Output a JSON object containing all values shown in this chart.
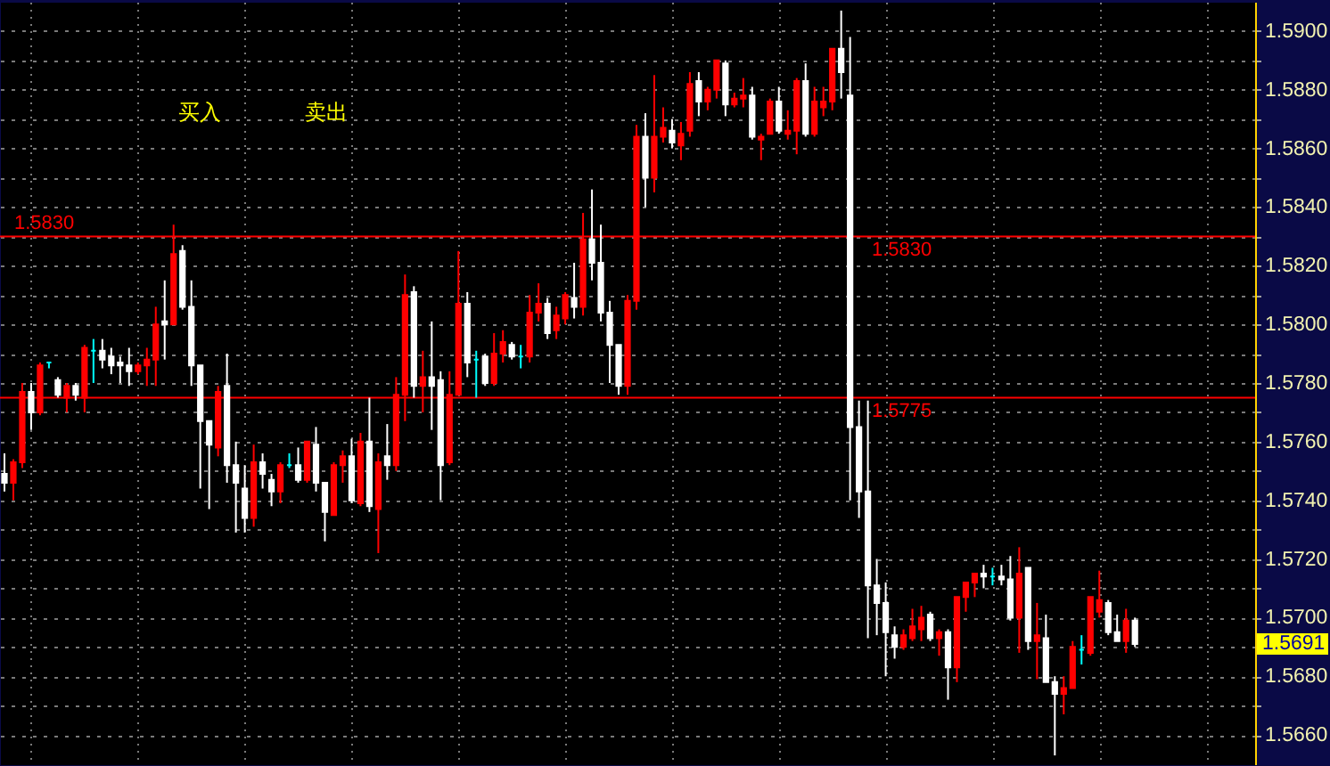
{
  "chart_data": {
    "type": "candlestick",
    "categories": [
      null,
      null,
      null,
      null,
      null,
      null,
      null,
      null,
      null,
      null,
      null,
      null,
      null,
      null,
      null,
      null,
      null,
      null,
      null,
      null,
      null,
      null,
      null,
      null,
      null,
      null,
      null,
      null,
      null,
      null,
      null,
      null,
      null,
      null,
      null,
      null,
      null,
      null,
      null,
      null,
      null,
      null,
      null,
      null,
      null,
      null,
      null,
      null,
      null,
      null,
      null,
      null,
      null,
      null,
      null,
      null,
      null,
      null,
      null,
      null,
      null,
      null,
      null,
      null,
      null,
      null,
      null,
      null,
      null,
      null,
      null,
      null,
      null,
      null,
      null,
      null,
      null,
      null,
      null,
      null,
      null,
      null,
      null,
      null,
      null,
      null,
      null,
      null,
      null,
      null,
      null,
      null,
      null,
      null,
      null,
      null,
      null,
      null,
      null,
      null,
      null,
      null,
      null,
      null,
      null,
      null,
      null,
      null,
      null,
      null,
      null,
      null,
      null,
      null,
      null,
      null,
      null,
      null,
      null,
      null,
      null,
      null,
      null,
      null,
      null,
      null,
      null,
      null,
      null,
      null,
      null,
      null,
      null,
      null,
      null,
      null,
      null,
      null,
      null,
      null,
      null
    ],
    "ohlc": [
      [
        1.5749,
        1.5756,
        1.5743,
        1.5746
      ],
      [
        1.5746,
        1.5754,
        1.574,
        1.5753
      ],
      [
        1.5753,
        1.578,
        1.5751,
        1.5777
      ],
      [
        1.5777,
        1.578,
        1.5764,
        1.577
      ],
      [
        1.577,
        1.5787,
        1.5769,
        1.5786
      ],
      [
        1.5787,
        1.5787,
        1.5785,
        1.5787
      ],
      [
        1.5781,
        1.5782,
        1.5775,
        1.5776
      ],
      [
        1.5775,
        1.578,
        1.577,
        1.5779
      ],
      [
        1.5779,
        1.578,
        1.5774,
        1.5776
      ],
      [
        1.5775,
        1.5793,
        1.577,
        1.5792
      ],
      [
        1.5791,
        1.5795,
        1.578,
        1.5791
      ],
      [
        1.5791,
        1.5795,
        1.5785,
        1.5788
      ],
      [
        1.5789,
        1.5792,
        1.5783,
        1.5786
      ],
      [
        1.5787,
        1.5789,
        1.578,
        1.5786
      ],
      [
        1.5786,
        1.5792,
        1.5779,
        1.5784
      ],
      [
        1.5784,
        1.5787,
        1.5783,
        1.5786
      ],
      [
        1.5786,
        1.5792,
        1.5779,
        1.5788
      ],
      [
        1.5788,
        1.5806,
        1.5779,
        1.58
      ],
      [
        1.5801,
        1.5815,
        1.5788,
        1.58
      ],
      [
        1.58,
        1.5834,
        1.58,
        1.5824
      ],
      [
        1.5825,
        1.5827,
        1.5805,
        1.5806
      ],
      [
        1.5806,
        1.5815,
        1.5779,
        1.5786
      ],
      [
        1.5786,
        1.5786,
        1.5744,
        1.5767
      ],
      [
        1.5767,
        1.5767,
        1.5737,
        1.5759
      ],
      [
        1.5758,
        1.5779,
        1.5755,
        1.5777
      ],
      [
        1.5779,
        1.579,
        1.5746,
        1.5752
      ],
      [
        1.5752,
        1.576,
        1.5729,
        1.5746
      ],
      [
        1.5744,
        1.5752,
        1.5729,
        1.5734
      ],
      [
        1.5734,
        1.5759,
        1.5731,
        1.5753
      ],
      [
        1.5753,
        1.5756,
        1.5744,
        1.5749
      ],
      [
        1.5747,
        1.5749,
        1.5738,
        1.5743
      ],
      [
        1.5743,
        1.5753,
        1.5739,
        1.5752
      ],
      [
        1.5752,
        1.5756,
        1.5751,
        1.5752
      ],
      [
        1.5752,
        1.5758,
        1.5746,
        1.5747
      ],
      [
        1.5747,
        1.576,
        1.5746,
        1.576
      ],
      [
        1.5759,
        1.5765,
        1.5743,
        1.5746
      ],
      [
        1.5746,
        1.5746,
        1.5726,
        1.5736
      ],
      [
        1.5735,
        1.5753,
        1.5735,
        1.5752
      ],
      [
        1.5752,
        1.5757,
        1.5746,
        1.5755
      ],
      [
        1.5755,
        1.5761,
        1.5739,
        1.574
      ],
      [
        1.5739,
        1.5763,
        1.5738,
        1.576
      ],
      [
        1.576,
        1.5775,
        1.5736,
        1.5738
      ],
      [
        1.5737,
        1.5756,
        1.5722,
        1.5753
      ],
      [
        1.5755,
        1.5766,
        1.5747,
        1.5752
      ],
      [
        1.5752,
        1.5782,
        1.575,
        1.5776
      ],
      [
        1.5776,
        1.5817,
        1.5767,
        1.581
      ],
      [
        1.5811,
        1.5813,
        1.5775,
        1.5779
      ],
      [
        1.5779,
        1.5791,
        1.577,
        1.5782
      ],
      [
        1.5782,
        1.5801,
        1.5764,
        1.5779
      ],
      [
        1.5781,
        1.5784,
        1.574,
        1.5752
      ],
      [
        1.5753,
        1.5784,
        1.5752,
        1.5776
      ],
      [
        1.5776,
        1.5825,
        1.5776,
        1.5807
      ],
      [
        1.5807,
        1.5811,
        1.5782,
        1.5787
      ],
      [
        1.5788,
        1.5791,
        1.5775,
        1.5788
      ],
      [
        1.5789,
        1.579,
        1.5779,
        1.578
      ],
      [
        1.578,
        1.5797,
        1.5779,
        1.579
      ],
      [
        1.579,
        1.5798,
        1.5787,
        1.5794
      ],
      [
        1.5793,
        1.5794,
        1.5788,
        1.5789
      ],
      [
        1.5789,
        1.5793,
        1.5785,
        1.5789
      ],
      [
        1.5789,
        1.581,
        1.5787,
        1.5804
      ],
      [
        1.5804,
        1.5814,
        1.5801,
        1.5807
      ],
      [
        1.5807,
        1.5809,
        1.5795,
        1.5797
      ],
      [
        1.5798,
        1.5806,
        1.5795,
        1.5803
      ],
      [
        1.5802,
        1.5811,
        1.58,
        1.581
      ],
      [
        1.5809,
        1.5821,
        1.5802,
        1.5806
      ],
      [
        1.5806,
        1.5838,
        1.5803,
        1.5829
      ],
      [
        1.5829,
        1.5846,
        1.5815,
        1.5821
      ],
      [
        1.5821,
        1.5834,
        1.5801,
        1.5804
      ],
      [
        1.5804,
        1.5808,
        1.578,
        1.5793
      ],
      [
        1.5793,
        1.5793,
        1.5776,
        1.5779
      ],
      [
        1.5779,
        1.581,
        1.5776,
        1.5808
      ],
      [
        1.5808,
        1.5868,
        1.5805,
        1.5864
      ],
      [
        1.5864,
        1.5872,
        1.584,
        1.585
      ],
      [
        1.585,
        1.5885,
        1.5845,
        1.5864
      ],
      [
        1.5864,
        1.5874,
        1.5862,
        1.5867
      ],
      [
        1.5866,
        1.587,
        1.586,
        1.5862
      ],
      [
        1.5861,
        1.5869,
        1.5856,
        1.5865
      ],
      [
        1.5866,
        1.5886,
        1.5864,
        1.5882
      ],
      [
        1.5883,
        1.5886,
        1.5871,
        1.5876
      ],
      [
        1.5876,
        1.5881,
        1.5873,
        1.588
      ],
      [
        1.588,
        1.589,
        1.5877,
        1.589
      ],
      [
        1.5889,
        1.589,
        1.5871,
        1.5875
      ],
      [
        1.5875,
        1.5879,
        1.5874,
        1.5877
      ],
      [
        1.5877,
        1.5884,
        1.5874,
        1.5878
      ],
      [
        1.5878,
        1.5881,
        1.5863,
        1.5864
      ],
      [
        1.5863,
        1.5865,
        1.5856,
        1.5864
      ],
      [
        1.5865,
        1.5877,
        1.5865,
        1.5876
      ],
      [
        1.5876,
        1.5881,
        1.5865,
        1.5866
      ],
      [
        1.5865,
        1.5873,
        1.5863,
        1.5866
      ],
      [
        1.5866,
        1.5884,
        1.5858,
        1.5883
      ],
      [
        1.5883,
        1.5889,
        1.5864,
        1.5865
      ],
      [
        1.5865,
        1.5881,
        1.5864,
        1.5876
      ],
      [
        1.5874,
        1.5881,
        1.5871,
        1.5876
      ],
      [
        1.5876,
        1.5894,
        1.5873,
        1.5894
      ],
      [
        1.5894,
        1.5907,
        1.5877,
        1.5886
      ],
      [
        1.5878,
        1.5898,
        1.574,
        1.5765
      ],
      [
        1.5765,
        1.5774,
        1.5734,
        1.5743
      ],
      [
        1.5743,
        1.5774,
        1.5693,
        1.5711
      ],
      [
        1.5711,
        1.572,
        1.5694,
        1.5705
      ],
      [
        1.5705,
        1.5712,
        1.568,
        1.5695
      ],
      [
        1.5694,
        1.5697,
        1.5686,
        1.569
      ],
      [
        1.569,
        1.5696,
        1.5689,
        1.5694
      ],
      [
        1.5693,
        1.5703,
        1.5692,
        1.5697
      ],
      [
        1.5696,
        1.5704,
        1.5692,
        1.57
      ],
      [
        1.5701,
        1.5702,
        1.5692,
        1.5693
      ],
      [
        1.5693,
        1.5696,
        1.5687,
        1.5695
      ],
      [
        1.5695,
        1.5696,
        1.5672,
        1.5683
      ],
      [
        1.5683,
        1.5707,
        1.5678,
        1.5707
      ],
      [
        1.5707,
        1.5712,
        1.5702,
        1.5712
      ],
      [
        1.5712,
        1.5715,
        1.5707,
        1.5715
      ],
      [
        1.5715,
        1.5718,
        1.571,
        1.5714
      ],
      [
        1.5714,
        1.5717,
        1.5711,
        1.5714
      ],
      [
        1.5714,
        1.5718,
        1.5711,
        1.5713
      ],
      [
        1.5713,
        1.5721,
        1.5699,
        1.57
      ],
      [
        1.57,
        1.5724,
        1.5688,
        1.5715
      ],
      [
        1.5717,
        1.5717,
        1.5689,
        1.5692
      ],
      [
        1.5692,
        1.5705,
        1.5679,
        1.5694
      ],
      [
        1.5693,
        1.5701,
        1.5678,
        1.5678
      ],
      [
        1.5678,
        1.568,
        1.5653,
        1.5674
      ],
      [
        1.5674,
        1.568,
        1.5667,
        1.5676
      ],
      [
        1.5676,
        1.5692,
        1.5676,
        1.569
      ],
      [
        1.5689,
        1.5694,
        1.5684,
        1.5689
      ],
      [
        1.5688,
        1.5707,
        1.5687,
        1.5707
      ],
      [
        1.5702,
        1.5716,
        1.57,
        1.5706
      ],
      [
        1.5705,
        1.5706,
        1.5694,
        1.5695
      ],
      [
        1.5695,
        1.5701,
        1.5692,
        1.5692
      ],
      [
        1.5692,
        1.5703,
        1.5688,
        1.5699
      ],
      [
        1.5699,
        1.57,
        1.569,
        1.5691
      ],
      null,
      null,
      null,
      null,
      null,
      null,
      null,
      null,
      null,
      null,
      null,
      null,
      null
    ],
    "colors": [
      "#ffffff",
      "#ff0000",
      "#ff0000",
      "#ffffff",
      "#ff0000",
      "#00ffff",
      "#ffffff",
      "#ff0000",
      "#ffffff",
      "#ff0000",
      "#00ffff",
      "#ffffff",
      "#ffffff",
      "#ffffff",
      "#ffffff",
      "#ff0000",
      "#ff0000",
      "#ff0000",
      "#ffffff",
      "#ff0000",
      "#ffffff",
      "#ffffff",
      "#ffffff",
      "#ffffff",
      "#ff0000",
      "#ffffff",
      "#ffffff",
      "#ffffff",
      "#ff0000",
      "#ffffff",
      "#ffffff",
      "#ff0000",
      "#00ffff",
      "#ffffff",
      "#ff0000",
      "#ffffff",
      "#ffffff",
      "#ff0000",
      "#ff0000",
      "#ffffff",
      "#ff0000",
      "#ffffff",
      "#ff0000",
      "#ffffff",
      "#ff0000",
      "#ff0000",
      "#ffffff",
      "#ff0000",
      "#ffffff",
      "#ffffff",
      "#ff0000",
      "#ff0000",
      "#ffffff",
      "#00ffff",
      "#ffffff",
      "#ff0000",
      "#ff0000",
      "#ffffff",
      "#00ffff",
      "#ff0000",
      "#ff0000",
      "#ffffff",
      "#ff0000",
      "#ff0000",
      "#ffffff",
      "#ff0000",
      "#ffffff",
      "#ffffff",
      "#ffffff",
      "#ffffff",
      "#ff0000",
      "#ff0000",
      "#ffffff",
      "#ff0000",
      "#ff0000",
      "#ffffff",
      "#ff0000",
      "#ff0000",
      "#ffffff",
      "#ff0000",
      "#ff0000",
      "#ffffff",
      "#ff0000",
      "#ff0000",
      "#ffffff",
      "#ff0000",
      "#ff0000",
      "#ffffff",
      "#ff0000",
      "#ff0000",
      "#ffffff",
      "#ff0000",
      "#ff0000",
      "#ff0000",
      "#ffffff",
      "#ffffff",
      "#ffffff",
      "#ffffff",
      "#ffffff",
      "#ffffff",
      "#ffffff",
      "#ff0000",
      "#ff0000",
      "#ff0000",
      "#ffffff",
      "#ff0000",
      "#ffffff",
      "#ff0000",
      "#ff0000",
      "#ff0000",
      "#ffffff",
      "#00ffff",
      "#ffffff",
      "#ffffff",
      "#ff0000",
      "#ffffff",
      "#ff0000",
      "#ffffff",
      "#ffffff",
      "#ff0000",
      "#ff0000",
      "#00ffff",
      "#ff0000",
      "#ff0000",
      "#ffffff",
      "#ffffff",
      "#ff0000",
      "#ffffff",
      null,
      null,
      null,
      null,
      null,
      null,
      null,
      null,
      null,
      null,
      null,
      null,
      null
    ],
    "ylim": [
      1.565,
      1.591
    ],
    "yticks": [
      {
        "value": 1.566,
        "label": "1.5660"
      },
      {
        "value": 1.567,
        "label": null
      },
      {
        "value": 1.568,
        "label": "1.5680"
      },
      {
        "value": 1.569,
        "label": null
      },
      {
        "value": 1.57,
        "label": "1.5700"
      },
      {
        "value": 1.571,
        "label": null
      },
      {
        "value": 1.572,
        "label": "1.5720"
      },
      {
        "value": 1.573,
        "label": null
      },
      {
        "value": 1.574,
        "label": "1.5740"
      },
      {
        "value": 1.575,
        "label": null
      },
      {
        "value": 1.576,
        "label": "1.5760"
      },
      {
        "value": 1.577,
        "label": null
      },
      {
        "value": 1.578,
        "label": "1.5780"
      },
      {
        "value": 1.579,
        "label": null
      },
      {
        "value": 1.58,
        "label": "1.5800"
      },
      {
        "value": 1.581,
        "label": null
      },
      {
        "value": 1.582,
        "label": "1.5820"
      },
      {
        "value": 1.583,
        "label": null
      },
      {
        "value": 1.584,
        "label": "1.5840"
      },
      {
        "value": 1.585,
        "label": null
      },
      {
        "value": 1.586,
        "label": "1.5860"
      },
      {
        "value": 1.587,
        "label": null
      },
      {
        "value": 1.588,
        "label": "1.5880"
      },
      {
        "value": 1.589,
        "label": null
      },
      {
        "value": 1.59,
        "label": "1.5900"
      }
    ],
    "ref_lines": [
      {
        "axis": "y",
        "value": 1.583,
        "label": "1.5830",
        "color": "#ff0000"
      },
      {
        "axis": "y",
        "value": 1.5775,
        "label": "1.5775",
        "color": "#ff0000"
      }
    ],
    "annotations": [
      "买入",
      "卖出",
      "1.5691"
    ],
    "grid": true,
    "tick_labels": "y"
  }
}
